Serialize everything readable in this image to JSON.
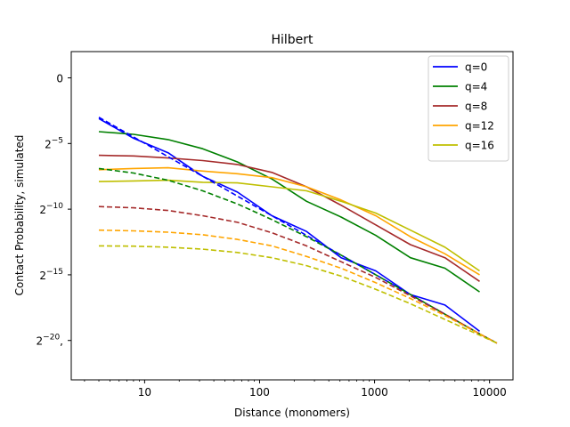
{
  "chart_data": {
    "type": "line",
    "title": "Hilbert",
    "xlabel": "Distance (monomers)",
    "ylabel": "Contact Probability, simulated",
    "xscale": "log",
    "yscale": "log2",
    "xlim": [
      2.3,
      16000
    ],
    "ylim_log2": [
      -23,
      2
    ],
    "xticks": [
      {
        "value": 10,
        "label": "10"
      },
      {
        "value": 100,
        "label": "100"
      },
      {
        "value": 1000,
        "label": "1000"
      },
      {
        "value": 10000,
        "label": "10000"
      }
    ],
    "yticks": [
      {
        "log2": 0,
        "base": "0",
        "exp": ""
      },
      {
        "log2": -5,
        "base": "2",
        "exp": "−5"
      },
      {
        "log2": -10,
        "base": "2",
        "exp": "−10"
      },
      {
        "log2": -15,
        "base": "2",
        "exp": "−15"
      },
      {
        "log2": -20,
        "base": "2",
        "exp": "−20",
        "suffix": ","
      }
    ],
    "grid": false,
    "legend": "top-right",
    "series": [
      {
        "name": "q=0",
        "color": "#0000ff",
        "style": "solid",
        "x": [
          4,
          8,
          16,
          32,
          64,
          128,
          256,
          512,
          1024,
          2048,
          4096,
          8192
        ],
        "y_log2": [
          -3.1,
          -4.6,
          -5.7,
          -7.5,
          -8.7,
          -10.5,
          -11.7,
          -13.7,
          -14.7,
          -16.5,
          -17.3,
          -19.3
        ]
      },
      {
        "name": "q=4",
        "color": "#008000",
        "style": "solid",
        "x": [
          4,
          8,
          16,
          32,
          64,
          128,
          256,
          512,
          1024,
          2048,
          4096,
          8192
        ],
        "y_log2": [
          -4.1,
          -4.3,
          -4.7,
          -5.4,
          -6.4,
          -7.7,
          -9.4,
          -10.6,
          -12.0,
          -13.7,
          -14.5,
          -16.3
        ]
      },
      {
        "name": "q=8",
        "color": "#a52a2a",
        "style": "solid",
        "x": [
          4,
          8,
          16,
          32,
          64,
          128,
          256,
          512,
          1024,
          2048,
          4096,
          8192
        ],
        "y_log2": [
          -5.9,
          -5.95,
          -6.1,
          -6.3,
          -6.6,
          -7.2,
          -8.3,
          -9.7,
          -11.2,
          -12.7,
          -13.7,
          -15.5
        ]
      },
      {
        "name": "q=12",
        "color": "#ffa500",
        "style": "solid",
        "x": [
          4,
          8,
          16,
          32,
          64,
          128,
          256,
          512,
          1024,
          2048,
          4096,
          8192
        ],
        "y_log2": [
          -7.0,
          -6.9,
          -6.85,
          -7.1,
          -7.3,
          -7.6,
          -8.3,
          -9.3,
          -10.5,
          -12.1,
          -13.4,
          -15.0
        ]
      },
      {
        "name": "q=16",
        "color": "#bfbf00",
        "style": "solid",
        "x": [
          4,
          8,
          16,
          32,
          64,
          128,
          256,
          512,
          1024,
          2048,
          4096,
          8192
        ],
        "y_log2": [
          -7.9,
          -7.85,
          -7.8,
          -7.95,
          -8.0,
          -8.3,
          -8.6,
          -9.4,
          -10.3,
          -11.6,
          -12.9,
          -14.7
        ]
      },
      {
        "name": "",
        "color": "#0000ff",
        "style": "dashed",
        "x": [
          4,
          8,
          16,
          32,
          64,
          128,
          256,
          512,
          1024,
          2048,
          4096,
          8192,
          11585
        ],
        "y_log2": [
          -3.0,
          -4.5,
          -6.0,
          -7.5,
          -9.0,
          -10.5,
          -12.0,
          -13.5,
          -15.0,
          -16.5,
          -18.0,
          -19.5,
          -20.2
        ]
      },
      {
        "name": "",
        "color": "#008000",
        "style": "dashed",
        "x": [
          4,
          8,
          16,
          32,
          64,
          128,
          256,
          512,
          1024,
          2048,
          4096,
          8192,
          11585
        ],
        "y_log2": [
          -6.9,
          -7.25,
          -7.8,
          -8.6,
          -9.6,
          -10.8,
          -12.1,
          -13.5,
          -15.0,
          -16.5,
          -18.0,
          -19.5,
          -20.2
        ]
      },
      {
        "name": "",
        "color": "#a52a2a",
        "style": "dashed",
        "x": [
          4,
          8,
          16,
          32,
          64,
          128,
          256,
          512,
          1024,
          2048,
          4096,
          8192,
          11585
        ],
        "y_log2": [
          -9.8,
          -9.9,
          -10.1,
          -10.5,
          -11.0,
          -11.8,
          -12.8,
          -14.0,
          -15.2,
          -16.6,
          -18.0,
          -19.5,
          -20.2
        ]
      },
      {
        "name": "",
        "color": "#ffa500",
        "style": "dashed",
        "x": [
          4,
          8,
          16,
          32,
          64,
          128,
          256,
          512,
          1024,
          2048,
          4096,
          8192,
          11585
        ],
        "y_log2": [
          -11.6,
          -11.65,
          -11.75,
          -11.95,
          -12.3,
          -12.8,
          -13.6,
          -14.5,
          -15.6,
          -16.8,
          -18.1,
          -19.5,
          -20.2
        ]
      },
      {
        "name": "",
        "color": "#bfbf00",
        "style": "dashed",
        "x": [
          4,
          8,
          16,
          32,
          64,
          128,
          256,
          512,
          1024,
          2048,
          4096,
          8192,
          11585
        ],
        "y_log2": [
          -12.8,
          -12.82,
          -12.9,
          -13.05,
          -13.3,
          -13.7,
          -14.3,
          -15.1,
          -16.1,
          -17.2,
          -18.4,
          -19.6,
          -20.2
        ]
      }
    ]
  }
}
